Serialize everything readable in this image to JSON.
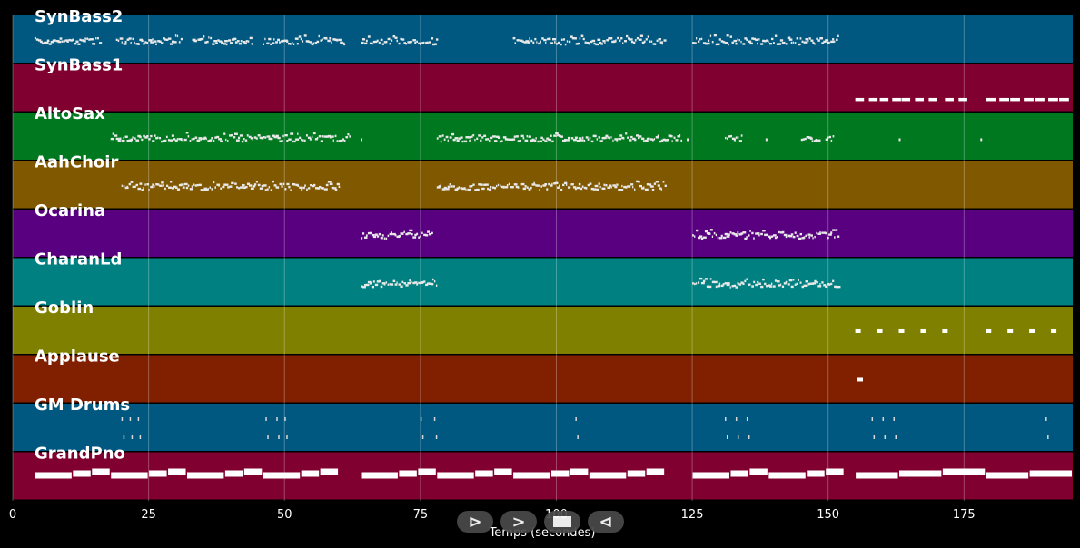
{
  "chart_data": {
    "type": "piano-roll",
    "xlabel": "Temps (secondes)",
    "xlim": [
      0,
      195
    ],
    "xticks": [
      0,
      25,
      50,
      75,
      100,
      125,
      150,
      175
    ],
    "grid": true,
    "tracks": [
      {
        "name": "SynBass2",
        "color": "#005880",
        "clusters": [
          [
            4,
            16
          ],
          [
            19,
            31
          ],
          [
            33,
            44
          ],
          [
            46,
            61
          ],
          [
            64,
            78
          ],
          [
            92,
            120
          ],
          [
            125,
            152
          ]
        ]
      },
      {
        "name": "SynBass1",
        "color": "#800030",
        "dashes": [
          155,
          157.5,
          159.5,
          161.8,
          163.5,
          166,
          168.5,
          171.5,
          174
        ],
        "dash_len": 1.6,
        "dashes2": [
          179,
          181.5,
          183.5,
          186,
          188,
          190.5,
          192.5
        ],
        "dash_len2": 1.8
      },
      {
        "name": "AltoSax",
        "color": "#007820",
        "clusters": [
          [
            18,
            62
          ],
          [
            78,
            123
          ],
          [
            131,
            134
          ],
          [
            145,
            148
          ],
          [
            149.5,
            151
          ]
        ],
        "singles": [
          64,
          124,
          138.5,
          163,
          178
        ]
      },
      {
        "name": "AahChoir",
        "color": "#805800",
        "clusters": [
          [
            20,
            60
          ],
          [
            78,
            120
          ]
        ]
      },
      {
        "name": "Ocarina",
        "color": "#580080",
        "clusters": [
          [
            64,
            77
          ],
          [
            125,
            152
          ]
        ]
      },
      {
        "name": "CharanLd",
        "color": "#008080",
        "clusters": [
          [
            64,
            78
          ],
          [
            125,
            152
          ]
        ]
      },
      {
        "name": "Goblin",
        "color": "#808000",
        "dots": [
          155,
          159,
          163,
          167,
          171,
          179,
          183,
          187,
          191
        ]
      },
      {
        "name": "Applause",
        "color": "#802000",
        "dots": [
          155.4
        ]
      },
      {
        "name": "GM Drums",
        "color": "#005880",
        "hits": [
          20,
          21.5,
          23,
          46.5,
          48.5,
          50,
          75,
          77.5,
          103.5,
          131,
          133,
          135,
          158,
          160,
          162,
          190
        ]
      },
      {
        "name": "GrandPno",
        "color": "#800030",
        "segments": [
          [
            4,
            11
          ],
          [
            11,
            14.5
          ],
          [
            14.5,
            18
          ],
          [
            18,
            25
          ],
          [
            25,
            28.5
          ],
          [
            28.5,
            32
          ],
          [
            32,
            39
          ],
          [
            39,
            42.5
          ],
          [
            42.5,
            46
          ],
          [
            46,
            53
          ],
          [
            53,
            56.5
          ],
          [
            56.5,
            60
          ],
          [
            64,
            71
          ],
          [
            71,
            74.5
          ],
          [
            74.5,
            78
          ],
          [
            78,
            85
          ],
          [
            85,
            88.5
          ],
          [
            88.5,
            92
          ],
          [
            92,
            99
          ],
          [
            99,
            102.5
          ],
          [
            102.5,
            106
          ],
          [
            106,
            113
          ],
          [
            113,
            116.5
          ],
          [
            116.5,
            120
          ],
          [
            125,
            132
          ],
          [
            132,
            135.5
          ],
          [
            135.5,
            139
          ],
          [
            139,
            146
          ],
          [
            146,
            149.5
          ],
          [
            149.5,
            153
          ],
          [
            155,
            163
          ],
          [
            163,
            171
          ],
          [
            171,
            179
          ],
          [
            179,
            187
          ],
          [
            187,
            195
          ]
        ]
      }
    ]
  },
  "controls": {
    "play_label": "⊳",
    "forward_label": ">",
    "back_label": "⊲"
  }
}
